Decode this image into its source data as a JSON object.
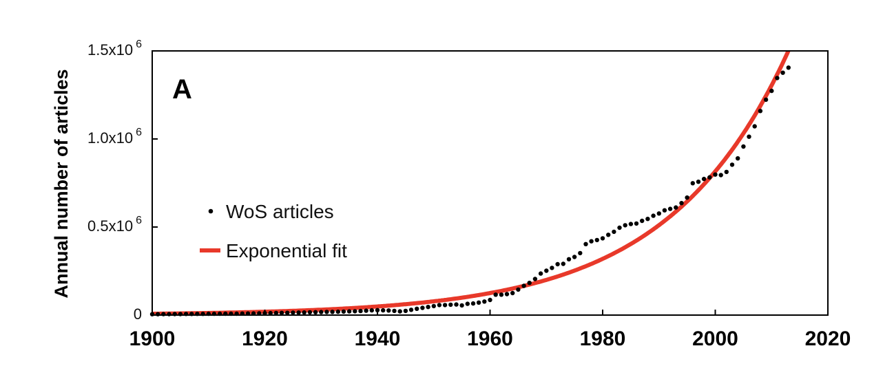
{
  "chart_data": {
    "type": "scatter",
    "panel_label": "A",
    "xlabel": "",
    "ylabel": "Annual number of articles",
    "xlim": [
      1900,
      2020
    ],
    "ylim": [
      0,
      1500000
    ],
    "x_ticks": [
      1900,
      1920,
      1940,
      1960,
      1980,
      2000,
      2020
    ],
    "x_tick_labels": [
      "1900",
      "1920",
      "1940",
      "1960",
      "1980",
      "2000",
      "2020"
    ],
    "y_ticks": [
      0,
      500000,
      1000000,
      1500000
    ],
    "y_tick_labels": [
      {
        "base": "0",
        "exp": ""
      },
      {
        "base": "0.5x10",
        "exp": "6"
      },
      {
        "base": "1.0x10",
        "exp": "6"
      },
      {
        "base": "1.5x10",
        "exp": "6"
      }
    ],
    "grid": false,
    "legend_position": "center-left",
    "series": [
      {
        "name": "WoS articles",
        "kind": "points",
        "color": "#000000",
        "x": [
          1900,
          1901,
          1902,
          1903,
          1904,
          1905,
          1906,
          1907,
          1908,
          1909,
          1910,
          1911,
          1912,
          1913,
          1914,
          1915,
          1916,
          1917,
          1918,
          1919,
          1920,
          1921,
          1922,
          1923,
          1924,
          1925,
          1926,
          1927,
          1928,
          1929,
          1930,
          1931,
          1932,
          1933,
          1934,
          1935,
          1936,
          1937,
          1938,
          1939,
          1940,
          1941,
          1942,
          1943,
          1944,
          1945,
          1946,
          1947,
          1948,
          1949,
          1950,
          1951,
          1952,
          1953,
          1954,
          1955,
          1956,
          1957,
          1958,
          1959,
          1960,
          1961,
          1962,
          1963,
          1964,
          1965,
          1966,
          1967,
          1968,
          1969,
          1970,
          1971,
          1972,
          1973,
          1974,
          1975,
          1976,
          1977,
          1978,
          1979,
          1980,
          1981,
          1982,
          1983,
          1984,
          1985,
          1986,
          1987,
          1988,
          1989,
          1990,
          1991,
          1992,
          1993,
          1994,
          1995,
          1996,
          1997,
          1998,
          1999,
          2000,
          2001,
          2002,
          2003,
          2004,
          2005,
          2006,
          2007,
          2008,
          2009,
          2010,
          2011,
          2012,
          2013
        ],
        "y": [
          5000,
          5000,
          5500,
          5500,
          6000,
          6000,
          6500,
          6500,
          7000,
          7000,
          7500,
          7500,
          8000,
          8000,
          8000,
          8000,
          8500,
          9000,
          9500,
          10000,
          11000,
          11500,
          12000,
          12500,
          13000,
          14000,
          14500,
          15000,
          16000,
          16500,
          17000,
          18000,
          18500,
          19000,
          20000,
          21000,
          22000,
          23000,
          25000,
          27000,
          28000,
          27000,
          26000,
          24000,
          21000,
          24000,
          30000,
          36000,
          41000,
          46000,
          51000,
          57000,
          57000,
          59000,
          60000,
          55000,
          64000,
          66000,
          71000,
          77000,
          86000,
          116000,
          116000,
          119000,
          125000,
          145000,
          166000,
          183000,
          205000,
          236000,
          252000,
          268000,
          289000,
          291000,
          317000,
          330000,
          352000,
          403000,
          419000,
          426000,
          436000,
          456000,
          473000,
          496000,
          510000,
          517000,
          520000,
          535000,
          546000,
          564000,
          577000,
          595000,
          603000,
          611000,
          636000,
          667000,
          749000,
          757000,
          773000,
          782000,
          798000,
          795000,
          813000,
          854000,
          890000,
          957000,
          1013000,
          1072000,
          1159000,
          1223000,
          1273000,
          1346000,
          1376000,
          1405000
        ]
      },
      {
        "name": "Exponential fit",
        "kind": "line",
        "color": "#E8392A",
        "model": "y = A * exp(r * (x - x0))",
        "A": 125000,
        "r": 0.0469,
        "x0": 1960,
        "x_range": [
          1900,
          2013
        ]
      }
    ]
  }
}
